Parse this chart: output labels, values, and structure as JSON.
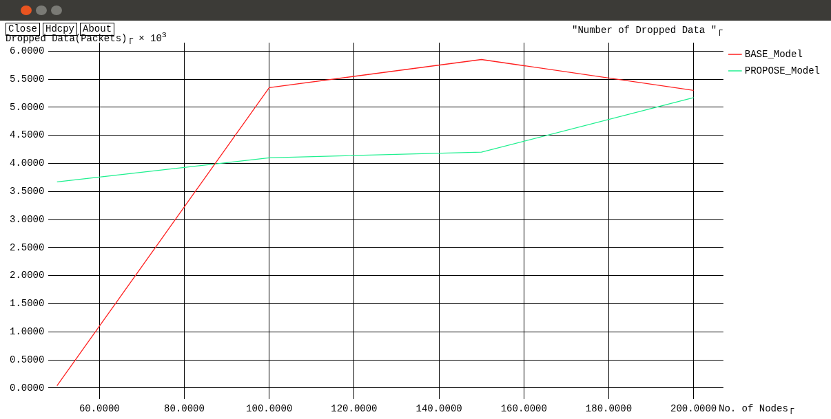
{
  "chart_data": {
    "type": "line",
    "title": "\"Number of Dropped Data \"┌",
    "xlabel": "No. of Nodes┌",
    "ylabel": "Dropped Data(Packets)┌ × 10$^{3}$",
    "annotations": [
      "Close",
      "Hdcpy",
      "About"
    ],
    "x": [
      50,
      100,
      150,
      200
    ],
    "series": [
      {
        "name": "BASE_Model",
        "color": "#ff2020",
        "values": [
          0.04,
          5.35,
          5.85,
          5.3
        ]
      },
      {
        "name": "PROPOSE_Model",
        "color": "#20f090",
        "values": [
          3.67,
          4.1,
          4.2,
          5.17
        ]
      }
    ],
    "xlim": [
      48,
      207
    ],
    "xticks": [
      {
        "value": 60,
        "label": "60.0000"
      },
      {
        "value": 80,
        "label": "80.0000"
      },
      {
        "value": 100,
        "label": "100.0000"
      },
      {
        "value": 120,
        "label": "120.0000"
      },
      {
        "value": 140,
        "label": "140.0000"
      },
      {
        "value": 160,
        "label": "160.0000"
      },
      {
        "value": 180,
        "label": "180.0000"
      },
      {
        "value": 200,
        "label": "200.0000"
      }
    ],
    "ylim": [
      -0.2,
      6.15
    ],
    "yticks": [
      {
        "value": 0,
        "label": "0.0000"
      },
      {
        "value": 0.5,
        "label": "0.5000"
      },
      {
        "value": 1,
        "label": "1.0000"
      },
      {
        "value": 1.5,
        "label": "1.5000"
      },
      {
        "value": 2,
        "label": "2.0000"
      },
      {
        "value": 2.5,
        "label": "2.5000"
      },
      {
        "value": 3,
        "label": "3.0000"
      },
      {
        "value": 3.5,
        "label": "3.5000"
      },
      {
        "value": 4,
        "label": "4.0000"
      },
      {
        "value": 4.5,
        "label": "4.5000"
      },
      {
        "value": 5,
        "label": "5.0000"
      },
      {
        "value": 5.5,
        "label": "5.5000"
      },
      {
        "value": 6,
        "label": "6.0000"
      }
    ],
    "grid": true,
    "legend": "top right",
    "marker": "none",
    "line_style": "solid"
  }
}
